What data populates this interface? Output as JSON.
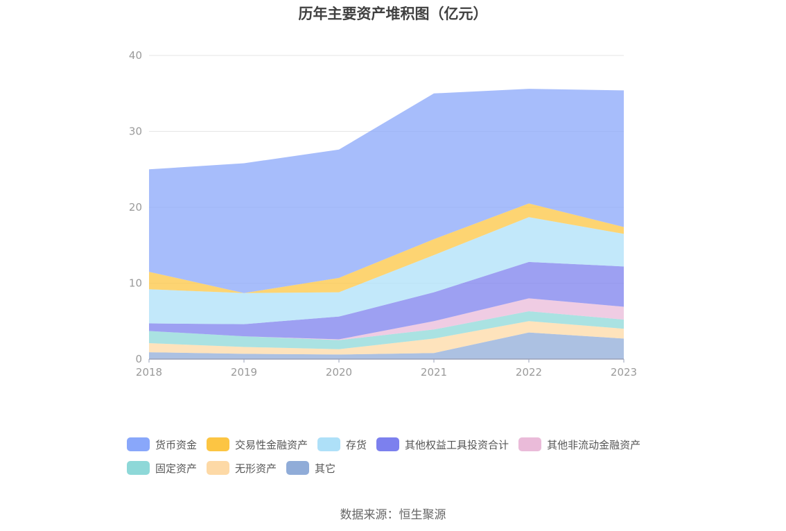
{
  "chart_data": {
    "type": "area",
    "title": "历年主要资产堆积图（亿元）",
    "categories": [
      "2018",
      "2019",
      "2020",
      "2021",
      "2022",
      "2023"
    ],
    "ylim": [
      0,
      40
    ],
    "yticks": [
      0,
      10,
      20,
      30,
      40
    ],
    "stacked": true,
    "grid": true,
    "legend_position": "bottom",
    "series": [
      {
        "name": "其它",
        "color": "#90acd8",
        "values": [
          0.9,
          0.7,
          0.6,
          0.8,
          3.5,
          2.7
        ]
      },
      {
        "name": "无形资产",
        "color": "#fdd9a6",
        "values": [
          1.2,
          0.9,
          0.7,
          1.9,
          1.5,
          1.3
        ]
      },
      {
        "name": "固定资产",
        "color": "#8ed8d8",
        "values": [
          1.6,
          1.4,
          1.2,
          1.2,
          1.3,
          1.2
        ]
      },
      {
        "name": "其他非流动金融资产",
        "color": "#eabbd9",
        "values": [
          0,
          0,
          0.1,
          1.1,
          1.7,
          1.7
        ]
      },
      {
        "name": "其他权益工具投资合计",
        "color": "#7c80ee",
        "values": [
          1.0,
          1.6,
          3.0,
          3.8,
          4.8,
          5.3
        ]
      },
      {
        "name": "存货",
        "color": "#aee0f8",
        "values": [
          4.5,
          4.1,
          3.2,
          4.9,
          5.9,
          4.3
        ]
      },
      {
        "name": "交易性金融资产",
        "color": "#fcc543",
        "values": [
          2.3,
          0,
          1.9,
          2.1,
          1.8,
          0.9
        ]
      },
      {
        "name": "货币资金",
        "color": "#89a7fa",
        "values": [
          13.5,
          17.1,
          16.9,
          19.2,
          15.1,
          18.0
        ]
      }
    ]
  },
  "legend": {
    "row1": [
      {
        "label": "货币资金",
        "color": "#89a7fa"
      },
      {
        "label": "交易性金融资产",
        "color": "#fcc543"
      },
      {
        "label": "存货",
        "color": "#aee0f8"
      },
      {
        "label": "其他权益工具投资合计",
        "color": "#7c80ee"
      },
      {
        "label": "其他非流动金融资产",
        "color": "#eabbd9"
      }
    ],
    "row2": [
      {
        "label": "固定资产",
        "color": "#8ed8d8"
      },
      {
        "label": "无形资产",
        "color": "#fdd9a6"
      },
      {
        "label": "其它",
        "color": "#90acd8"
      }
    ]
  },
  "source": "数据来源：恒生聚源"
}
